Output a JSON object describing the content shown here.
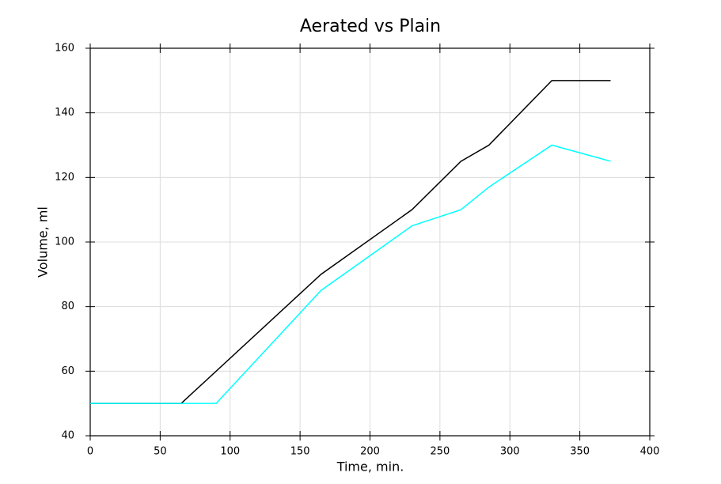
{
  "chart_data": {
    "type": "line",
    "title": "Aerated vs Plain",
    "x_label": "Time, min.",
    "y_label": "Volume, ml",
    "series": [
      {
        "color": "#000000",
        "x": [
          0,
          65,
          165,
          230,
          265,
          285,
          330,
          372
        ],
        "values": [
          50,
          50,
          90,
          110,
          125,
          130,
          150,
          150
        ]
      },
      {
        "color": "#00ffff",
        "x": [
          0,
          90,
          165,
          230,
          265,
          285,
          330,
          372
        ],
        "values": [
          50,
          50,
          85,
          105,
          110,
          117,
          130,
          125
        ]
      }
    ],
    "xlim": [
      0,
      400
    ],
    "xticks": [
      0,
      50,
      100,
      150,
      200,
      250,
      300,
      350,
      400
    ],
    "ylim": [
      40,
      160
    ],
    "yticks": [
      40,
      60,
      80,
      100,
      120,
      140,
      160
    ],
    "grid": true
  }
}
